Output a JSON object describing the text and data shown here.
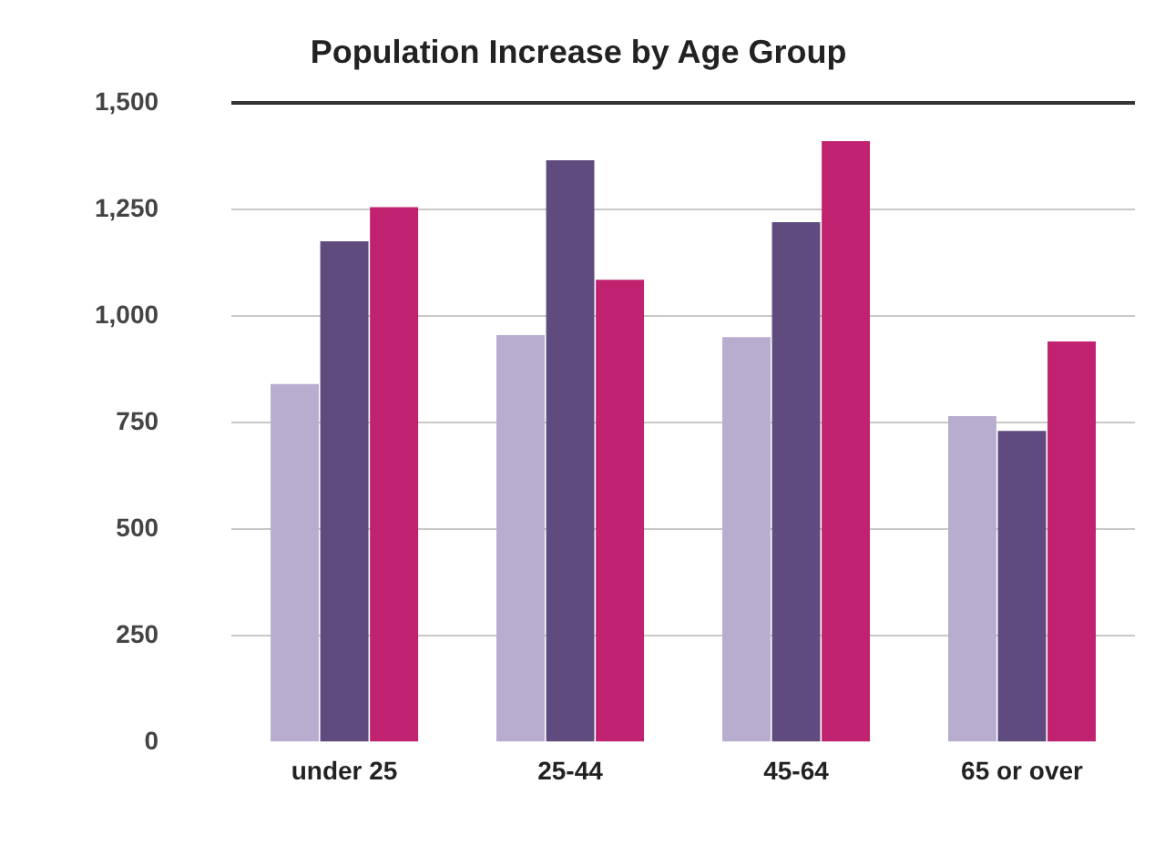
{
  "chart_data": {
    "type": "bar",
    "title": "Population Increase by Age Group",
    "categories": [
      "under 25",
      "25-44",
      "45-64",
      "65 or over"
    ],
    "series": [
      {
        "color": "#b8adcf",
        "values": [
          840,
          955,
          950,
          765
        ]
      },
      {
        "color": "#5f4b7e",
        "values": [
          1175,
          1365,
          1220,
          730
        ]
      },
      {
        "color": "#c0226f",
        "values": [
          1255,
          1085,
          1410,
          940
        ]
      }
    ],
    "ylim": [
      0,
      1500
    ],
    "yticks": [
      {
        "value": 0,
        "label": "0"
      },
      {
        "value": 250,
        "label": "250"
      },
      {
        "value": 500,
        "label": "500"
      },
      {
        "value": 750,
        "label": "750"
      },
      {
        "value": 1000,
        "label": "1,000"
      },
      {
        "value": 1250,
        "label": "1,250"
      },
      {
        "value": 1500,
        "label": "1,500"
      }
    ],
    "grid": "y",
    "legend": false
  }
}
